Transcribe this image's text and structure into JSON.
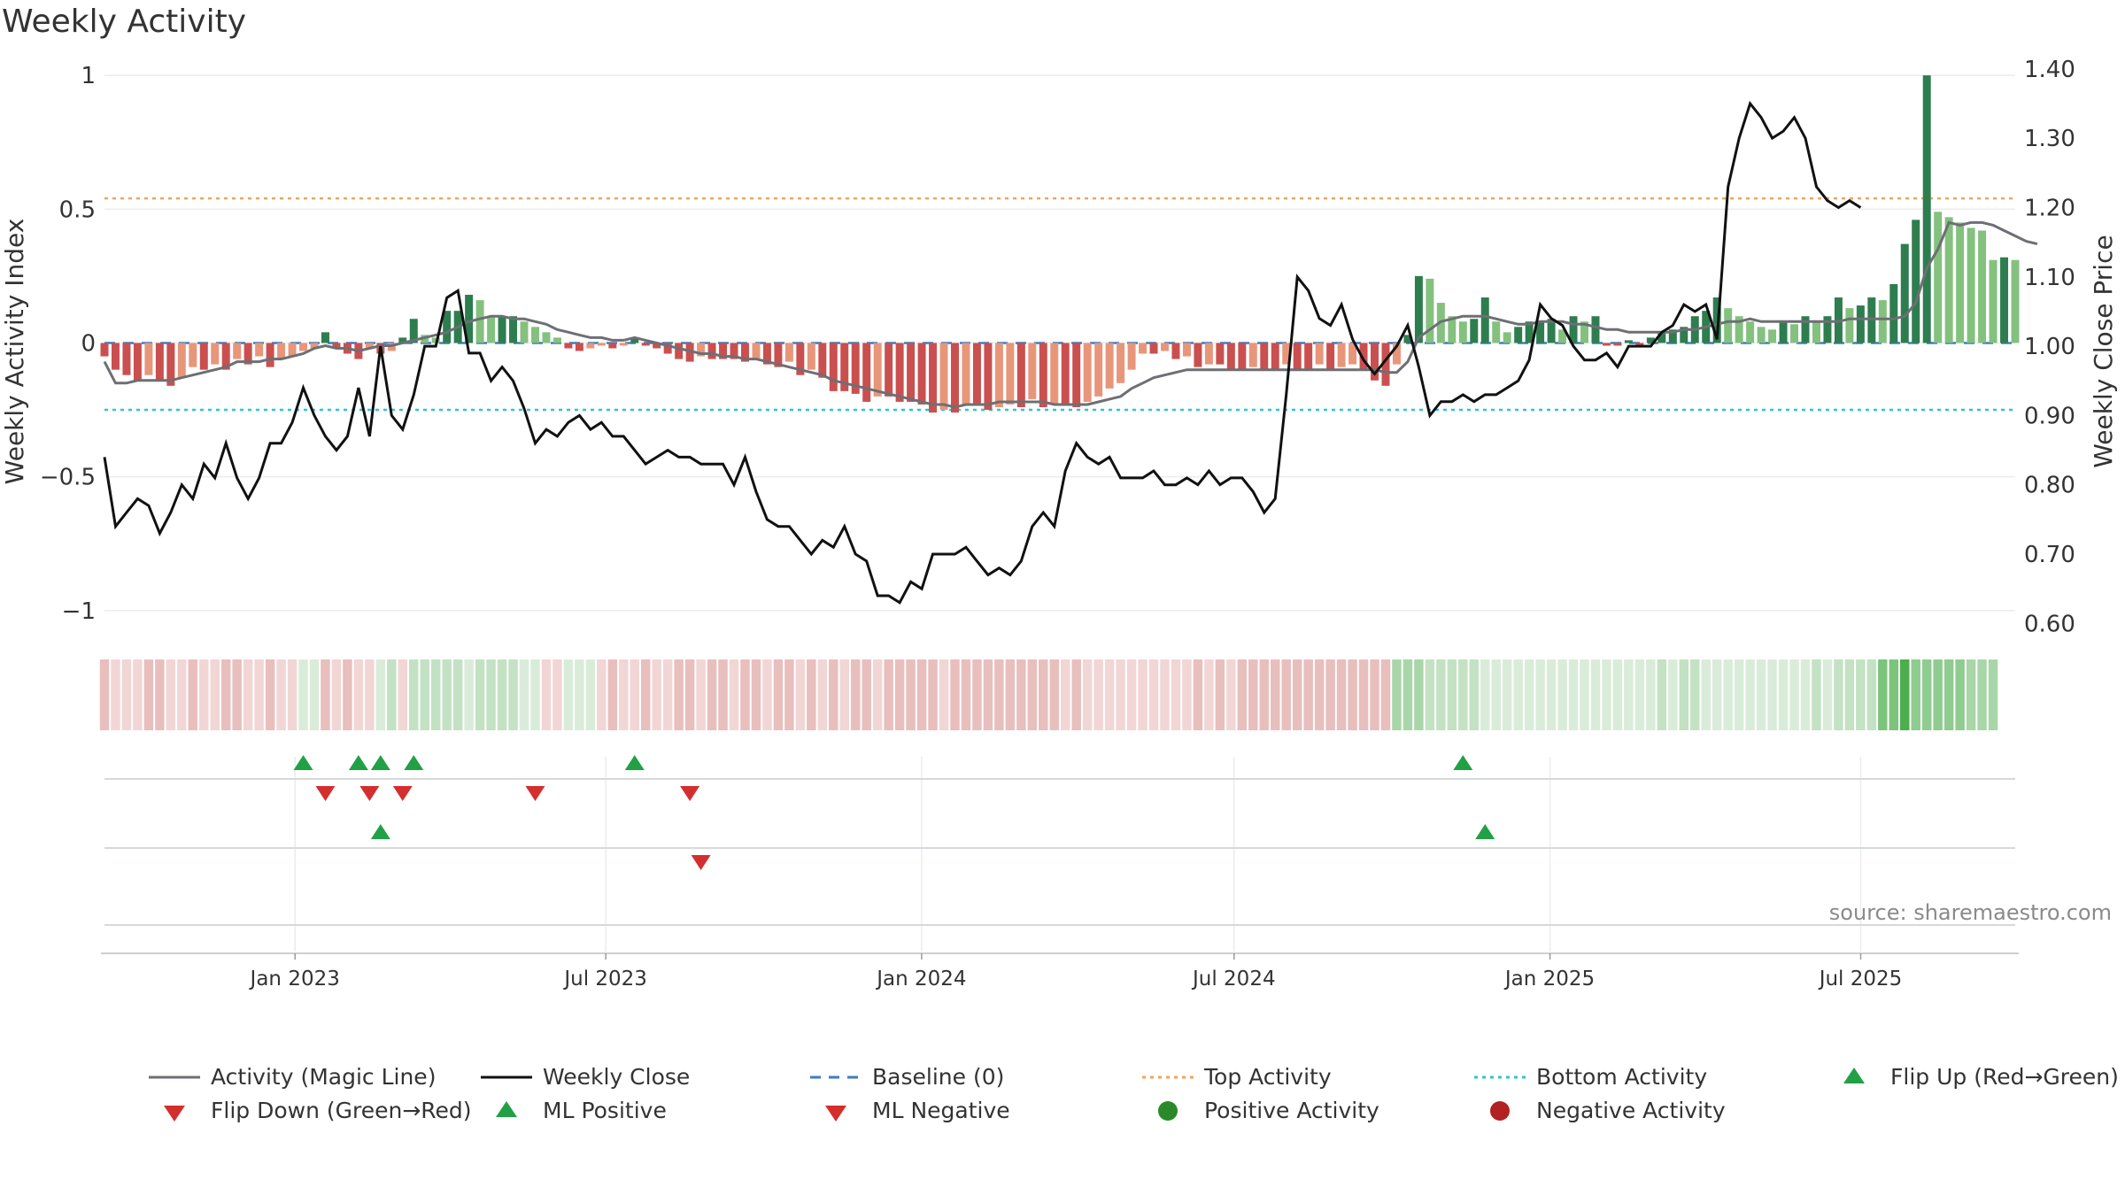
{
  "chart_data": {
    "type": "bar",
    "title": "Weekly Activity",
    "ylabel_left": "Weekly Activity Index",
    "ylabel_right": "Weekly Close Price",
    "source": "source: sharemaestro.com",
    "left_axis": {
      "ylim": [
        -1.1,
        1.05
      ],
      "ticks": [
        1,
        0.5,
        0,
        -0.5,
        -1
      ],
      "tick_labels": [
        "1",
        "0.5",
        "0",
        "−0.5",
        "−1"
      ]
    },
    "right_axis": {
      "ylim": [
        0.58,
        1.41
      ],
      "ticks": [
        1.4,
        1.3,
        1.2,
        1.1,
        1.0,
        0.9,
        0.8,
        0.7,
        0.6
      ],
      "tick_labels": [
        "1.40",
        "1.30",
        "1.20",
        "1.10",
        "1.00",
        "0.90",
        "0.80",
        "0.70",
        "0.60"
      ]
    },
    "x_range": [
      "2022-09-12",
      "2025-09-29"
    ],
    "x_ticks": [
      {
        "date": "2023-01-01",
        "label": "Jan 2023"
      },
      {
        "date": "2023-07-01",
        "label": "Jul 2023"
      },
      {
        "date": "2024-01-01",
        "label": "Jan 2024"
      },
      {
        "date": "2024-07-01",
        "label": "Jul 2024"
      },
      {
        "date": "2025-01-01",
        "label": "Jan 2025"
      },
      {
        "date": "2025-07-01",
        "label": "Jul 2025"
      }
    ],
    "top_activity": 0.54,
    "bottom_activity": -0.25,
    "baseline": 0,
    "activity": [
      -0.05,
      -0.1,
      -0.12,
      -0.14,
      -0.12,
      -0.14,
      -0.16,
      -0.13,
      -0.09,
      -0.1,
      -0.08,
      -0.1,
      -0.06,
      -0.08,
      -0.05,
      -0.09,
      -0.06,
      -0.05,
      -0.03,
      -0.02,
      0.04,
      -0.02,
      -0.04,
      -0.06,
      -0.02,
      -0.04,
      -0.03,
      0.02,
      0.09,
      0.03,
      0.02,
      0.12,
      0.12,
      0.18,
      0.16,
      0.1,
      0.1,
      0.1,
      0.08,
      0.06,
      0.04,
      0.02,
      -0.02,
      -0.03,
      -0.02,
      -0.01,
      -0.02,
      -0.01,
      0.02,
      -0.01,
      -0.02,
      -0.04,
      -0.06,
      -0.07,
      -0.05,
      -0.06,
      -0.06,
      -0.06,
      -0.07,
      -0.06,
      -0.08,
      -0.09,
      -0.07,
      -0.12,
      -0.1,
      -0.13,
      -0.18,
      -0.18,
      -0.19,
      -0.22,
      -0.2,
      -0.2,
      -0.22,
      -0.22,
      -0.23,
      -0.26,
      -0.25,
      -0.26,
      -0.23,
      -0.23,
      -0.25,
      -0.24,
      -0.23,
      -0.24,
      -0.21,
      -0.24,
      -0.23,
      -0.23,
      -0.24,
      -0.22,
      -0.2,
      -0.17,
      -0.15,
      -0.1,
      -0.04,
      -0.04,
      -0.03,
      -0.06,
      -0.05,
      -0.09,
      -0.08,
      -0.08,
      -0.1,
      -0.1,
      -0.09,
      -0.1,
      -0.1,
      -0.08,
      -0.1,
      -0.1,
      -0.08,
      -0.1,
      -0.09,
      -0.08,
      -0.1,
      -0.14,
      -0.16,
      -0.08,
      0.03,
      0.25,
      0.24,
      0.15,
      0.1,
      0.08,
      0.09,
      0.17,
      0.08,
      0.04,
      0.06,
      0.08,
      0.08,
      0.09,
      0.05,
      0.1,
      0.08,
      0.1,
      -0.01,
      -0.01,
      0.01,
      -0.01,
      0.02,
      0.04,
      0.05,
      0.06,
      0.1,
      0.12,
      0.17,
      0.13,
      0.1,
      0.08,
      0.06,
      0.05,
      0.08,
      0.07,
      0.1,
      0.08,
      0.1,
      0.17,
      0.13,
      0.14,
      0.17,
      0.16,
      0.22,
      0.37,
      0.46,
      1.0,
      0.49,
      0.47,
      0.45,
      0.43,
      0.42,
      0.31,
      0.32,
      0.31
    ],
    "magic_line": [
      -0.07,
      -0.15,
      -0.15,
      -0.14,
      -0.14,
      -0.14,
      -0.14,
      -0.13,
      -0.12,
      -0.11,
      -0.1,
      -0.09,
      -0.07,
      -0.07,
      -0.07,
      -0.06,
      -0.06,
      -0.05,
      -0.04,
      -0.02,
      -0.01,
      -0.02,
      -0.02,
      -0.03,
      -0.02,
      -0.01,
      -0.01,
      0.0,
      0.01,
      0.02,
      0.03,
      0.04,
      0.06,
      0.08,
      0.09,
      0.1,
      0.1,
      0.09,
      0.09,
      0.08,
      0.07,
      0.05,
      0.04,
      0.03,
      0.02,
      0.02,
      0.01,
      0.01,
      0.02,
      0.01,
      0.0,
      -0.01,
      -0.02,
      -0.03,
      -0.04,
      -0.04,
      -0.05,
      -0.05,
      -0.06,
      -0.06,
      -0.07,
      -0.08,
      -0.09,
      -0.1,
      -0.11,
      -0.12,
      -0.14,
      -0.15,
      -0.16,
      -0.17,
      -0.18,
      -0.19,
      -0.2,
      -0.21,
      -0.22,
      -0.23,
      -0.23,
      -0.24,
      -0.23,
      -0.23,
      -0.23,
      -0.22,
      -0.22,
      -0.22,
      -0.22,
      -0.22,
      -0.23,
      -0.23,
      -0.23,
      -0.23,
      -0.22,
      -0.21,
      -0.2,
      -0.17,
      -0.15,
      -0.13,
      -0.12,
      -0.11,
      -0.1,
      -0.1,
      -0.1,
      -0.1,
      -0.1,
      -0.1,
      -0.1,
      -0.1,
      -0.1,
      -0.1,
      -0.1,
      -0.1,
      -0.1,
      -0.1,
      -0.1,
      -0.1,
      -0.1,
      -0.1,
      -0.11,
      -0.11,
      -0.07,
      0.02,
      0.05,
      0.08,
      0.09,
      0.1,
      0.1,
      0.1,
      0.09,
      0.08,
      0.07,
      0.07,
      0.08,
      0.08,
      0.08,
      0.07,
      0.07,
      0.06,
      0.05,
      0.05,
      0.04,
      0.04,
      0.04,
      0.04,
      0.04,
      0.05,
      0.05,
      0.06,
      0.07,
      0.08,
      0.08,
      0.09,
      0.08,
      0.08,
      0.08,
      0.08,
      0.08,
      0.08,
      0.08,
      0.08,
      0.09,
      0.09,
      0.09,
      0.09,
      0.09,
      0.1,
      0.15,
      0.28,
      0.35,
      0.45,
      0.44,
      0.45,
      0.45,
      0.44,
      0.42,
      0.4,
      0.38,
      0.37
    ],
    "weekly_close": [
      0.84,
      0.74,
      0.76,
      0.78,
      0.77,
      0.73,
      0.76,
      0.8,
      0.78,
      0.83,
      0.81,
      0.86,
      0.81,
      0.78,
      0.81,
      0.86,
      0.86,
      0.89,
      0.94,
      0.9,
      0.87,
      0.85,
      0.87,
      0.94,
      0.87,
      1.0,
      0.9,
      0.88,
      0.93,
      1.0,
      1.0,
      1.07,
      1.08,
      0.99,
      0.99,
      0.95,
      0.97,
      0.95,
      0.91,
      0.86,
      0.88,
      0.87,
      0.89,
      0.9,
      0.88,
      0.89,
      0.87,
      0.87,
      0.85,
      0.83,
      0.84,
      0.85,
      0.84,
      0.84,
      0.83,
      0.83,
      0.83,
      0.8,
      0.84,
      0.79,
      0.75,
      0.74,
      0.74,
      0.72,
      0.7,
      0.72,
      0.71,
      0.74,
      0.7,
      0.69,
      0.64,
      0.64,
      0.63,
      0.66,
      0.65,
      0.7,
      0.7,
      0.7,
      0.71,
      0.69,
      0.67,
      0.68,
      0.67,
      0.69,
      0.74,
      0.76,
      0.74,
      0.82,
      0.86,
      0.84,
      0.83,
      0.84,
      0.81,
      0.81,
      0.81,
      0.82,
      0.8,
      0.8,
      0.81,
      0.8,
      0.82,
      0.8,
      0.81,
      0.81,
      0.79,
      0.76,
      0.78,
      0.93,
      1.1,
      1.08,
      1.04,
      1.03,
      1.06,
      1.01,
      0.98,
      0.96,
      0.98,
      1.0,
      1.03,
      0.97,
      0.9,
      0.92,
      0.92,
      0.93,
      0.92,
      0.93,
      0.93,
      0.94,
      0.95,
      0.98,
      1.06,
      1.04,
      1.03,
      1.0,
      0.98,
      0.98,
      0.99,
      0.97,
      1.0,
      1.0,
      1.0,
      1.02,
      1.03,
      1.06,
      1.05,
      1.06,
      1.01,
      1.23,
      1.3,
      1.35,
      1.33,
      1.3,
      1.31,
      1.33,
      1.3,
      1.23,
      1.21,
      1.2,
      1.21,
      1.2
    ],
    "heat_colors": [
      "#e8bfbd",
      "#f1d6d5",
      "#f1d6d5",
      "#f1d6d5",
      "#e8bfbd",
      "#e8bfbd",
      "#f1d6d5",
      "#f1d6d5",
      "#e8bfbd",
      "#f1d6d5",
      "#f1d6d5",
      "#e8bfbd",
      "#e8bfbd",
      "#f1d6d5",
      "#f1d6d5",
      "#e8bfbd",
      "#f1d6d5",
      "#f1d6d5",
      "#d9ecd9",
      "#d9ecd9",
      "#e8bfbd",
      "#f1d6d5",
      "#e8bfbd",
      "#f1d6d5",
      "#f1d6d5",
      "#d9ecd9",
      "#c3e2c3",
      "#f1d6d5",
      "#c3e2c3",
      "#c3e2c3",
      "#c3e2c3",
      "#c3e2c3",
      "#c3e2c3",
      "#d9ecd9",
      "#c3e2c3",
      "#c3e2c3",
      "#c3e2c3",
      "#c3e2c3",
      "#d9ecd9",
      "#d9ecd9",
      "#f1d6d5",
      "#f1d6d5",
      "#d9ecd9",
      "#d9ecd9",
      "#d9ecd9",
      "#f1d6d5",
      "#e8bfbd",
      "#f1d6d5",
      "#f1d6d5",
      "#e8bfbd",
      "#f1d6d5",
      "#f1d6d5",
      "#e8bfbd",
      "#e8bfbd",
      "#f1d6d5",
      "#e8bfbd",
      "#e8bfbd",
      "#f1d6d5",
      "#e8bfbd",
      "#e8bfbd",
      "#f1d6d5",
      "#e8bfbd",
      "#e8bfbd",
      "#f1d6d5",
      "#e8bfbd",
      "#f1d6d5",
      "#e8bfbd",
      "#f1d6d5",
      "#e8bfbd",
      "#e8bfbd",
      "#f1d6d5",
      "#e8bfbd",
      "#e8bfbd",
      "#e8bfbd",
      "#e8bfbd",
      "#e8bfbd",
      "#f1d6d5",
      "#e8bfbd",
      "#e8bfbd",
      "#e8bfbd",
      "#e8bfbd",
      "#e8bfbd",
      "#e8bfbd",
      "#e8bfbd",
      "#e8bfbd",
      "#e8bfbd",
      "#e8bfbd",
      "#f1d6d5",
      "#e8bfbd",
      "#f1d6d5",
      "#f1d6d5",
      "#f1d6d5",
      "#f1d6d5",
      "#f1d6d5",
      "#f1d6d5",
      "#f1d6d5",
      "#f1d6d5",
      "#f1d6d5",
      "#f1d6d5",
      "#e8bfbd",
      "#f1d6d5",
      "#e8bfbd",
      "#f1d6d5",
      "#e8bfbd",
      "#e8bfbd",
      "#e8bfbd",
      "#e8bfbd",
      "#e8bfbd",
      "#e8bfbd",
      "#e8bfbd",
      "#e8bfbd",
      "#e8bfbd",
      "#e8bfbd",
      "#e8bfbd",
      "#e8bfbd",
      "#e8bfbd",
      "#e8bfbd",
      "#a9d6a9",
      "#a9d6a9",
      "#a9d6a9",
      "#c3e2c3",
      "#c3e2c3",
      "#c3e2c3",
      "#c3e2c3",
      "#c3e2c3",
      "#d9ecd9",
      "#d9ecd9",
      "#d9ecd9",
      "#d9ecd9",
      "#d9ecd9",
      "#d9ecd9",
      "#d9ecd9",
      "#d9ecd9",
      "#d9ecd9",
      "#d9ecd9",
      "#d9ecd9",
      "#d9ecd9",
      "#d9ecd9",
      "#d9ecd9",
      "#d9ecd9",
      "#d9ecd9",
      "#c3e2c3",
      "#d9ecd9",
      "#c3e2c3",
      "#c3e2c3",
      "#d9ecd9",
      "#d9ecd9",
      "#d9ecd9",
      "#d9ecd9",
      "#d9ecd9",
      "#d9ecd9",
      "#d9ecd9",
      "#d9ecd9",
      "#d9ecd9",
      "#d9ecd9",
      "#c3e2c3",
      "#d9ecd9",
      "#c3e2c3",
      "#c3e2c3",
      "#c3e2c3",
      "#c3e2c3",
      "#7cc47c",
      "#7cc47c",
      "#4cae4c",
      "#8fcc8f",
      "#8fcc8f",
      "#8fcc8f",
      "#8fcc8f",
      "#8fcc8f",
      "#a9d6a9",
      "#a9d6a9",
      "#a9d6a9"
    ],
    "flip_up_weeks": [
      18,
      23,
      25,
      28,
      48,
      123
    ],
    "flip_down_weeks": [
      20,
      24,
      27,
      39,
      53
    ],
    "ml_positive_weeks": [
      25,
      125
    ],
    "ml_negative_weeks": [
      54
    ],
    "colors": {
      "pos_dark": "#2e7d4f",
      "pos_mid": "#4f9a5c",
      "pos_light": "#84c17e",
      "neg_dark": "#c9504f",
      "neg_light": "#e8967a",
      "magic_line": "#6d6f74",
      "weekly_close": "#111111",
      "baseline": "#3b7ec2",
      "top": "#f0a45d",
      "bottom": "#2ec5d3",
      "flip_up": "#22a046",
      "flip_down": "#d32f2f",
      "pos_activity": "#2a8a2a",
      "neg_activity": "#b22222"
    },
    "legend": [
      {
        "label": "Activity (Magic Line)",
        "marker": "line-solid-gray"
      },
      {
        "label": "Weekly Close",
        "marker": "line-solid-black"
      },
      {
        "label": "Baseline (0)",
        "marker": "line-dashed-blue"
      },
      {
        "label": "Top Activity",
        "marker": "line-dotted-orange"
      },
      {
        "label": "Bottom Activity",
        "marker": "line-dotted-cyan"
      },
      {
        "label": "Flip Up (Red→Green)",
        "marker": "triangle-up-green"
      },
      {
        "label": "Flip Down (Green→Red)",
        "marker": "triangle-down-red"
      },
      {
        "label": "ML Positive",
        "marker": "triangle-up-green"
      },
      {
        "label": "ML Negative",
        "marker": "triangle-down-red"
      },
      {
        "label": "Positive Activity",
        "marker": "circle-green"
      },
      {
        "label": "Negative Activity",
        "marker": "circle-red"
      }
    ]
  }
}
